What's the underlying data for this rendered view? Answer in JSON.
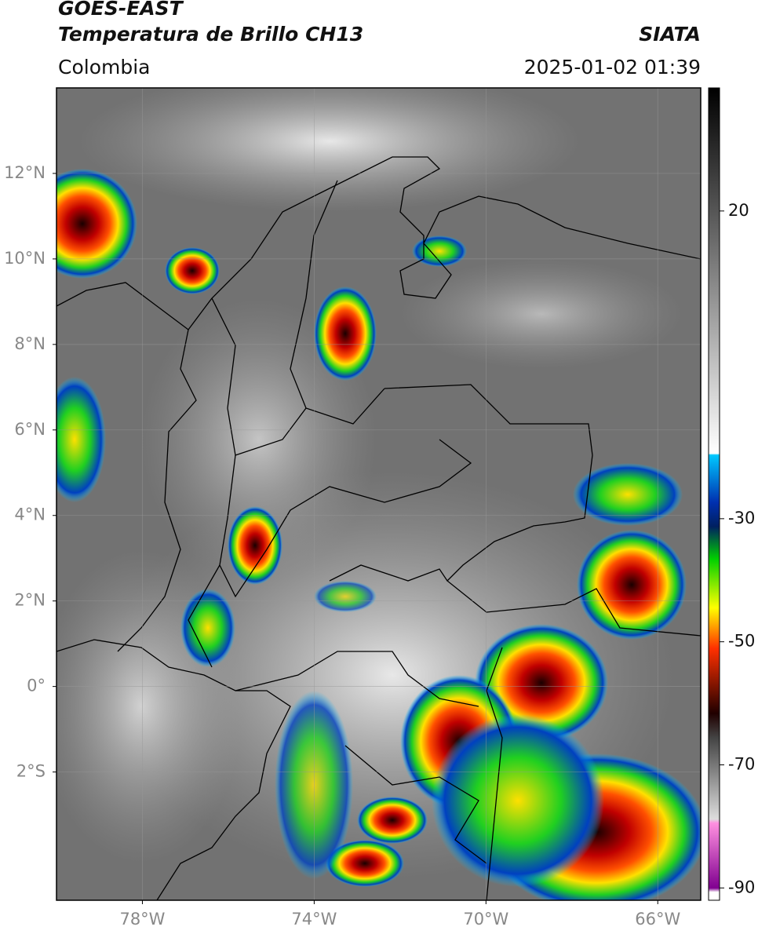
{
  "header": {
    "title": "GOES-EAST",
    "subtitle": "Temperatura de Brillo CH13",
    "region": "Colombia",
    "source": "SIATA",
    "datetime": "2025-01-02 01:39"
  },
  "map": {
    "lonlim": [
      -80,
      -65
    ],
    "latlim": [
      14,
      -5
    ],
    "lon_ticks": [
      {
        "value": -78,
        "label": "78°W"
      },
      {
        "value": -74,
        "label": "74°W"
      },
      {
        "value": -70,
        "label": "70°W"
      },
      {
        "value": -66,
        "label": "66°W"
      }
    ],
    "lat_ticks": [
      {
        "value": 12,
        "label": "12°N"
      },
      {
        "value": 10,
        "label": "10°N"
      },
      {
        "value": 8,
        "label": "8°N"
      },
      {
        "value": 6,
        "label": "6°N"
      },
      {
        "value": 4,
        "label": "4°N"
      },
      {
        "value": 2,
        "label": "2°N"
      },
      {
        "value": 0,
        "label": "0°"
      },
      {
        "value": -2,
        "label": "2°S"
      }
    ]
  },
  "colorbar": {
    "lim": [
      40,
      -92
    ],
    "ticks": [
      20,
      -30,
      -50,
      -70,
      -90
    ]
  }
}
